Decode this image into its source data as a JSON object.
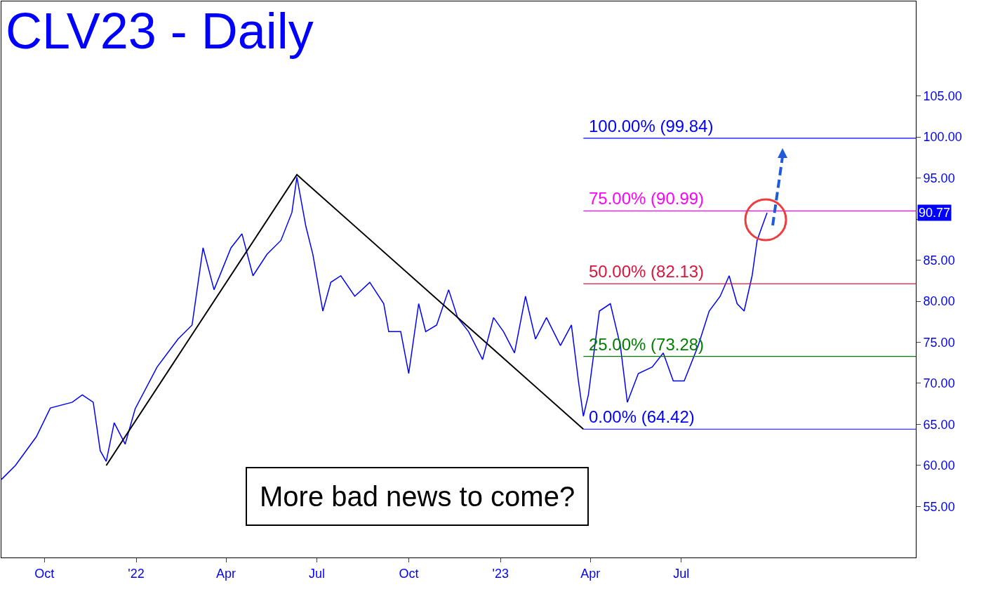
{
  "chart_data": {
    "type": "line",
    "title": "CLV23 - Daily",
    "series": [
      {
        "color": "#0000ff",
        "x": [
          "2021-08-19",
          "2021-09-02",
          "2021-09-23",
          "2021-10-07",
          "2021-10-29",
          "2021-11-08",
          "2021-11-19",
          "2021-11-26",
          "2021-12-02",
          "2021-12-10",
          "2021-12-21",
          "2021-12-31",
          "2022-01-22",
          "2022-02-12",
          "2022-02-26",
          "2022-03-09",
          "2022-03-20",
          "2022-04-06",
          "2022-04-17",
          "2022-04-28",
          "2022-05-12",
          "2022-05-26",
          "2022-06-06",
          "2022-06-11",
          "2022-06-20",
          "2022-06-27",
          "2022-07-07",
          "2022-07-15",
          "2022-07-25",
          "2022-08-08",
          "2022-08-23",
          "2022-09-06",
          "2022-09-11",
          "2022-09-23",
          "2022-10-01",
          "2022-10-11",
          "2022-10-18",
          "2022-10-29",
          "2022-11-10",
          "2022-11-19",
          "2022-11-30",
          "2022-12-14",
          "2022-12-25",
          "2023-01-04",
          "2023-01-15",
          "2023-01-26",
          "2023-02-05",
          "2023-02-16",
          "2023-03-02",
          "2023-03-13",
          "2023-03-20",
          "2023-03-25",
          "2023-03-30",
          "2023-04-10",
          "2023-04-21",
          "2023-05-01",
          "2023-05-08",
          "2023-05-19",
          "2023-06-02",
          "2023-06-13",
          "2023-06-23",
          "2023-07-04",
          "2023-07-18",
          "2023-07-29",
          "2023-08-09",
          "2023-08-18",
          "2023-08-26",
          "2023-09-02",
          "2023-09-10",
          "2023-09-15",
          "2023-09-20",
          "2023-09-25"
        ],
        "values": [
          58.3,
          60,
          63.5,
          67,
          67.7,
          68.6,
          67.7,
          61.8,
          60.5,
          65.2,
          62.6,
          66.9,
          72,
          75.4,
          77.1,
          86.5,
          81.4,
          86.5,
          88.2,
          83.1,
          85.7,
          87.4,
          90.8,
          95.1,
          89.1,
          85.7,
          78.8,
          82.3,
          83.1,
          80.6,
          82.3,
          79.7,
          76.3,
          76.3,
          71.2,
          79.7,
          76.3,
          77.1,
          81.4,
          78,
          76.3,
          72.9,
          78,
          76.3,
          73.7,
          80.6,
          75.4,
          78,
          74.6,
          77.1,
          70.3,
          66,
          68.6,
          78.8,
          79.7,
          74.6,
          67.7,
          71.2,
          72,
          73.7,
          70.3,
          70.3,
          74.6,
          78.8,
          80.6,
          83.1,
          79.7,
          78.8,
          83.1,
          87.4,
          89.1,
          90.77
        ]
      },
      {
        "color": "#000000",
        "x": [
          "2021-12-02",
          "2022-06-11",
          "2023-03-25"
        ],
        "values": [
          60.0,
          95.4,
          64.42
        ]
      }
    ],
    "xlim": [
      "2021-08-19",
      "2024-02-21"
    ],
    "xticks": [
      {
        "value": "2021-10-01",
        "label": "Oct"
      },
      {
        "value": "2022-01-01",
        "label": "'22"
      },
      {
        "value": "2022-04-01",
        "label": "Apr"
      },
      {
        "value": "2022-07-01",
        "label": "Jul"
      },
      {
        "value": "2022-10-01",
        "label": "Oct"
      },
      {
        "value": "2023-01-01",
        "label": "'23"
      },
      {
        "value": "2023-04-01",
        "label": "Apr"
      },
      {
        "value": "2023-07-01",
        "label": "Jul"
      }
    ],
    "ylim": [
      48.8,
      116.5
    ],
    "yticks": [
      {
        "value": 55,
        "label": "55.00"
      },
      {
        "value": 60,
        "label": "60.00"
      },
      {
        "value": 65,
        "label": "65.00"
      },
      {
        "value": 70,
        "label": "70.00"
      },
      {
        "value": 75,
        "label": "75.00"
      },
      {
        "value": 80,
        "label": "80.00"
      },
      {
        "value": 85,
        "label": "85.00"
      },
      {
        "value": 90,
        "label": null
      },
      {
        "value": 95,
        "label": "95.00"
      },
      {
        "value": 100,
        "label": "100.00"
      },
      {
        "value": 105,
        "label": "105.00"
      }
    ],
    "ref_lines": [
      {
        "axis": "y",
        "value": 99.84,
        "label": "100.00% (99.84)",
        "color": "#0000ff"
      },
      {
        "axis": "y",
        "value": 90.99,
        "label": "75.00% (90.99)",
        "color": "#ff00ff"
      },
      {
        "axis": "y",
        "value": 82.13,
        "label": "50.00% (82.13)",
        "color": "#dc143c"
      },
      {
        "axis": "y",
        "value": 73.28,
        "label": "25.00% (73.28)",
        "color": "#008000"
      },
      {
        "axis": "y",
        "value": 64.42,
        "label": "0.00% (64.42)",
        "color": "#0000ff"
      }
    ],
    "annotations": [
      "90.77",
      "More bad news to come?"
    ],
    "grid": false,
    "marker": "none",
    "line_style": "solid"
  }
}
